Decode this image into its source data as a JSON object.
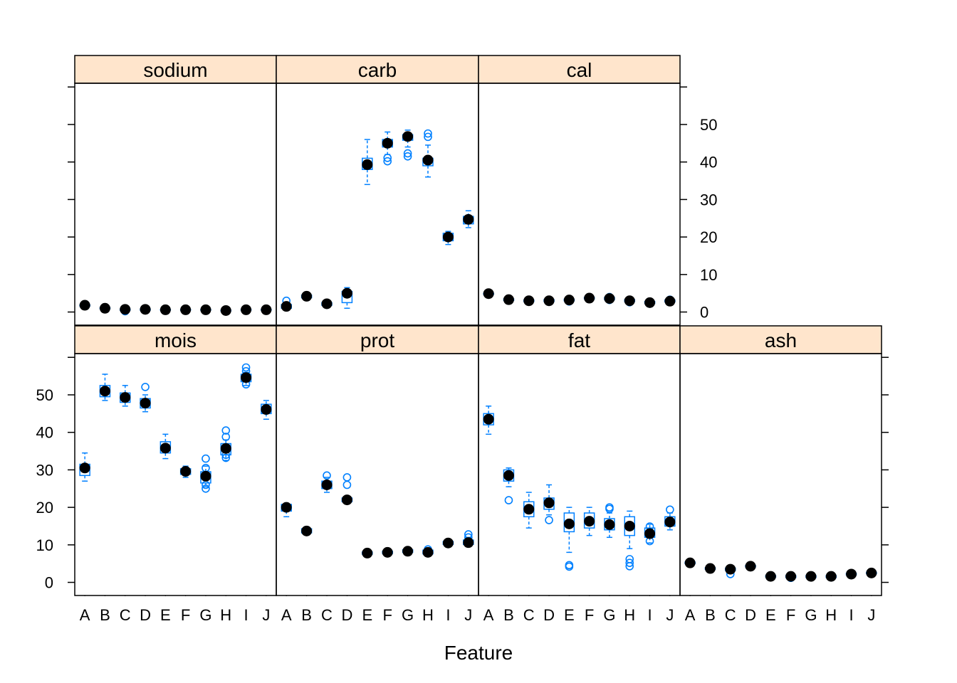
{
  "chart_data": {
    "type": "box",
    "xlabel": "Feature",
    "ylabel": "",
    "categories": [
      "A",
      "B",
      "C",
      "D",
      "E",
      "F",
      "G",
      "H",
      "I",
      "J"
    ],
    "ylim": [
      -3.5,
      61
    ],
    "y_ticks": [
      0,
      10,
      20,
      30,
      40,
      50
    ],
    "y_tick_labels": [
      "0",
      "10",
      "20",
      "30",
      "40",
      "50"
    ],
    "colors": {
      "strip": "#ffe5cc",
      "box": "#0080ff",
      "median": "#000000",
      "frame": "#000000"
    },
    "panels": [
      {
        "name": "sodium",
        "medians": [
          1.8,
          1.0,
          0.7,
          0.7,
          0.6,
          0.6,
          0.6,
          0.4,
          0.6,
          0.6
        ],
        "boxes": [
          [
            1.6,
            1.9
          ],
          [
            0.9,
            1.1
          ],
          [
            0.5,
            0.8
          ],
          [
            0.5,
            0.8
          ],
          [
            0.5,
            0.7
          ],
          [
            0.5,
            0.7
          ],
          [
            0.5,
            0.7
          ],
          [
            0.3,
            0.5
          ],
          [
            0.5,
            0.7
          ],
          [
            0.5,
            0.7
          ]
        ],
        "whiskers": [
          [
            1.5,
            2.0
          ],
          [
            0.8,
            1.2
          ],
          [
            0.3,
            0.9
          ],
          [
            0.4,
            0.9
          ],
          [
            0.4,
            0.8
          ],
          [
            0.4,
            0.8
          ],
          [
            0.4,
            0.8
          ],
          [
            0.2,
            0.6
          ],
          [
            0.4,
            0.8
          ],
          [
            0.4,
            0.8
          ]
        ],
        "outliers": [
          [],
          [],
          [
            0.2
          ],
          [
            0.5
          ],
          [],
          [
            0.4
          ],
          [],
          [],
          [
            0.5
          ],
          []
        ]
      },
      {
        "name": "carb",
        "medians": [
          1.5,
          4.2,
          2.2,
          5.0,
          39.3,
          45.0,
          46.8,
          40.5,
          20.0,
          24.7
        ],
        "boxes": [
          [
            1.0,
            2.0
          ],
          [
            3.8,
            4.5
          ],
          [
            1.8,
            2.5
          ],
          [
            2.5,
            5.5
          ],
          [
            38.0,
            41.0
          ],
          [
            44.0,
            46.0
          ],
          [
            45.8,
            47.3
          ],
          [
            39.0,
            41.0
          ],
          [
            19.0,
            21.0
          ],
          [
            23.5,
            25.5
          ]
        ],
        "whiskers": [
          [
            0.5,
            2.5
          ],
          [
            3.5,
            4.8
          ],
          [
            1.5,
            2.8
          ],
          [
            1.0,
            6.5
          ],
          [
            34.0,
            46.0
          ],
          [
            42.0,
            48.0
          ],
          [
            44.0,
            48.5
          ],
          [
            36.0,
            44.5
          ],
          [
            18.0,
            21.5
          ],
          [
            22.5,
            27.0
          ]
        ],
        "outliers": [
          [
            3.0
          ],
          [],
          [],
          [],
          [],
          [
            40.2,
            41.1
          ],
          [
            41.5,
            42.3
          ],
          [
            46.7,
            47.6
          ],
          [],
          []
        ]
      },
      {
        "name": "cal",
        "medians": [
          4.9,
          3.3,
          3.0,
          3.0,
          3.2,
          3.7,
          3.6,
          3.0,
          2.5,
          2.9
        ],
        "boxes": [
          [
            4.7,
            5.0
          ],
          [
            3.1,
            3.5
          ],
          [
            2.8,
            3.2
          ],
          [
            2.8,
            3.3
          ],
          [
            3.0,
            3.4
          ],
          [
            3.5,
            3.9
          ],
          [
            3.3,
            3.9
          ],
          [
            2.8,
            3.3
          ],
          [
            2.3,
            2.8
          ],
          [
            2.7,
            3.2
          ]
        ],
        "whiskers": [
          [
            4.5,
            5.2
          ],
          [
            2.9,
            3.7
          ],
          [
            2.6,
            3.4
          ],
          [
            2.6,
            3.5
          ],
          [
            2.8,
            3.6
          ],
          [
            3.3,
            4.1
          ],
          [
            3.1,
            4.1
          ],
          [
            2.6,
            3.5
          ],
          [
            2.1,
            3.0
          ],
          [
            2.5,
            3.4
          ]
        ],
        "outliers": [
          [],
          [],
          [],
          [
            2.7
          ],
          [
            2.8
          ],
          [],
          [
            3.2,
            4.0
          ],
          [
            2.6
          ],
          [
            2.2
          ],
          [
            3.3
          ]
        ]
      },
      {
        "name": "mois",
        "medians": [
          30.5,
          51.0,
          49.3,
          47.8,
          35.8,
          29.6,
          28.3,
          35.7,
          54.6,
          46.1
        ],
        "boxes": [
          [
            28.5,
            31.5
          ],
          [
            49.5,
            52.5
          ],
          [
            48.0,
            50.5
          ],
          [
            46.5,
            49.0
          ],
          [
            34.5,
            37.5
          ],
          [
            28.8,
            30.3
          ],
          [
            26.5,
            29.5
          ],
          [
            34.0,
            37.0
          ],
          [
            53.5,
            55.5
          ],
          [
            45.0,
            47.5
          ]
        ],
        "whiskers": [
          [
            27.0,
            34.5
          ],
          [
            48.5,
            55.5
          ],
          [
            47.0,
            52.5
          ],
          [
            45.5,
            50.0
          ],
          [
            33.0,
            39.5
          ],
          [
            28.0,
            31.0
          ],
          [
            25.5,
            31.0
          ],
          [
            32.5,
            38.0
          ],
          [
            52.5,
            56.0
          ],
          [
            43.5,
            48.5
          ]
        ],
        "outliers": [
          [],
          [],
          [],
          [
            52.1
          ],
          [],
          [],
          [
            25.0,
            26.0,
            30.5,
            33.0
          ],
          [
            33.2,
            34.0,
            38.8,
            40.5
          ],
          [
            52.8,
            56.3,
            57.3
          ],
          []
        ]
      },
      {
        "name": "prot",
        "medians": [
          20.0,
          13.7,
          26.0,
          22.0,
          7.8,
          8.0,
          8.3,
          8.0,
          10.5,
          10.6
        ],
        "boxes": [
          [
            19.0,
            20.8
          ],
          [
            13.2,
            14.3
          ],
          [
            25.0,
            27.0
          ],
          [
            21.5,
            22.5
          ],
          [
            7.5,
            8.1
          ],
          [
            7.7,
            8.3
          ],
          [
            8.0,
            8.7
          ],
          [
            7.6,
            8.6
          ],
          [
            10.1,
            10.9
          ],
          [
            10.1,
            11.3
          ]
        ],
        "whiskers": [
          [
            17.5,
            21.0
          ],
          [
            12.8,
            14.8
          ],
          [
            24.0,
            28.0
          ],
          [
            21.0,
            23.0
          ],
          [
            7.2,
            8.4
          ],
          [
            7.4,
            8.6
          ],
          [
            7.7,
            9.0
          ],
          [
            7.3,
            9.2
          ],
          [
            9.7,
            11.3
          ],
          [
            9.6,
            12.0
          ]
        ],
        "outliers": [
          [],
          [],
          [
            28.5
          ],
          [
            26.0,
            28.0
          ],
          [],
          [],
          [],
          [
            8.8
          ],
          [],
          [
            12.0,
            12.8
          ]
        ]
      },
      {
        "name": "fat",
        "medians": [
          43.5,
          28.5,
          19.5,
          21.2,
          15.6,
          16.3,
          15.4,
          15.0,
          13.0,
          16.1
        ],
        "boxes": [
          [
            42.0,
            45.0
          ],
          [
            27.0,
            30.0
          ],
          [
            17.5,
            21.5
          ],
          [
            19.5,
            22.5
          ],
          [
            13.5,
            18.5
          ],
          [
            14.5,
            18.5
          ],
          [
            14.0,
            17.0
          ],
          [
            12.5,
            17.5
          ],
          [
            12.0,
            14.5
          ],
          [
            15.0,
            17.5
          ]
        ],
        "whiskers": [
          [
            39.5,
            47.0
          ],
          [
            25.5,
            30.5
          ],
          [
            14.5,
            24.0
          ],
          [
            18.0,
            26.0
          ],
          [
            8.0,
            20.0
          ],
          [
            12.5,
            20.0
          ],
          [
            12.0,
            18.5
          ],
          [
            9.0,
            19.0
          ],
          [
            10.5,
            15.5
          ],
          [
            14.0,
            18.5
          ]
        ],
        "outliers": [
          [],
          [
            21.9
          ],
          [],
          [
            16.6
          ],
          [
            4.2,
            4.6
          ],
          [],
          [
            19.6,
            20.0
          ],
          [
            4.3,
            5.2,
            6.2
          ],
          [
            11.0,
            14.9
          ],
          [
            19.4
          ]
        ]
      },
      {
        "name": "ash",
        "medians": [
          5.2,
          3.7,
          3.5,
          4.3,
          1.6,
          1.6,
          1.6,
          1.6,
          2.2,
          2.5
        ],
        "boxes": [
          [
            5.0,
            5.4
          ],
          [
            3.5,
            3.9
          ],
          [
            3.2,
            3.8
          ],
          [
            4.1,
            4.5
          ],
          [
            1.4,
            1.8
          ],
          [
            1.3,
            1.8
          ],
          [
            1.3,
            1.8
          ],
          [
            1.3,
            1.8
          ],
          [
            2.0,
            2.4
          ],
          [
            2.3,
            2.7
          ]
        ],
        "whiskers": [
          [
            4.8,
            5.6
          ],
          [
            3.3,
            4.1
          ],
          [
            2.8,
            4.0
          ],
          [
            3.9,
            4.7
          ],
          [
            1.2,
            2.0
          ],
          [
            1.1,
            2.0
          ],
          [
            1.1,
            2.0
          ],
          [
            1.1,
            2.0
          ],
          [
            1.8,
            2.6
          ],
          [
            2.1,
            2.9
          ]
        ],
        "outliers": [
          [],
          [],
          [
            2.2
          ],
          [],
          [],
          [
            1.2
          ],
          [
            1.5
          ],
          [
            1.3
          ],
          [],
          []
        ]
      }
    ]
  }
}
